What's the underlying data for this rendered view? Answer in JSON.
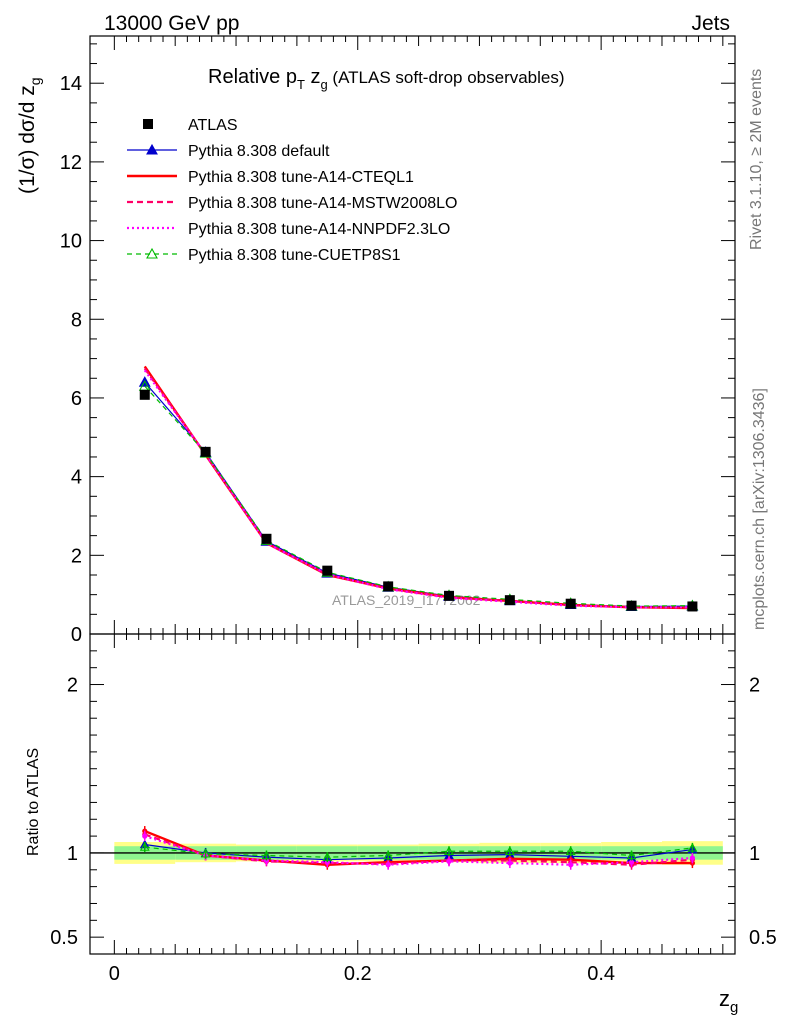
{
  "header": {
    "left": "13000 GeV pp",
    "right": "Jets"
  },
  "side_labels": {
    "version": "Rivet 3.1.10, ≥ 2M events",
    "source": "mcplots.cern.ch [arXiv:1306.3436]"
  },
  "colors": {
    "data": "#000000",
    "default": "#0000cc",
    "cteql1": "#ff0000",
    "mstw": "#ff0066",
    "nnpdf": "#ff00ff",
    "cuetp8s1": "#00bb00",
    "band_inner": "#8ff58f",
    "band_outer": "#ffff88"
  },
  "chart_data": {
    "type": "line",
    "title": "Relative p_T z_g (ATLAS soft-drop observables)",
    "title_parts": {
      "main": "Relative p",
      "sub_T": "T",
      "var": " z",
      "sub_g": "g",
      "note": " (ATLAS soft-drop observables)"
    },
    "analysis_id": "ATLAS_2019_I1772062",
    "xlabel": "z_g",
    "xlabel_parts": {
      "main": "z",
      "sub": "g"
    },
    "ylabel": "(1/σ) dσ/d z_g",
    "ylabel_parts": {
      "main": "(1/σ) dσ/d z",
      "sub": "g"
    },
    "ratio_ylabel": "Ratio to ATLAS",
    "xlim": [
      -0.02,
      0.51
    ],
    "ylim": [
      0,
      15.2
    ],
    "ratio_ylim": [
      0.4,
      2.3
    ],
    "x_ticks": [
      "0",
      "0.2",
      "0.4"
    ],
    "y_ticks": [
      "0",
      "2",
      "4",
      "6",
      "8",
      "10",
      "12",
      "14"
    ],
    "ratio_y_ticks": [
      "0.5",
      "1",
      "2"
    ],
    "legend_position": "top-left",
    "x": [
      0.025,
      0.075,
      0.125,
      0.175,
      0.225,
      0.275,
      0.325,
      0.375,
      0.425,
      0.475
    ],
    "data": {
      "name": "ATLAS",
      "values": [
        6.08,
        4.63,
        2.42,
        1.61,
        1.21,
        0.97,
        0.86,
        0.77,
        0.72,
        0.7
      ],
      "band_inner": [
        0.04,
        0.04,
        0.04,
        0.04,
        0.04,
        0.04,
        0.04,
        0.04,
        0.04,
        0.04
      ],
      "band_outer": [
        0.065,
        0.055,
        0.05,
        0.05,
        0.05,
        0.055,
        0.06,
        0.06,
        0.065,
        0.07
      ]
    },
    "series": [
      {
        "key": "default",
        "name": "Pythia 8.308 default",
        "values": [
          6.4,
          4.62,
          2.36,
          1.55,
          1.19,
          0.96,
          0.85,
          0.75,
          0.7,
          0.71
        ],
        "ratio": [
          1.05,
          1.0,
          0.975,
          0.96,
          0.97,
          0.985,
          0.99,
          0.98,
          0.97,
          1.02
        ]
      },
      {
        "key": "cteql1",
        "name": "Pythia 8.308 tune-A14-CTEQL1",
        "values": [
          6.8,
          4.55,
          2.31,
          1.5,
          1.16,
          0.94,
          0.84,
          0.74,
          0.68,
          0.66
        ],
        "ratio": [
          1.13,
          0.985,
          0.955,
          0.93,
          0.945,
          0.955,
          0.965,
          0.96,
          0.94,
          0.94
        ]
      },
      {
        "key": "mstw",
        "name": "Pythia 8.308 tune-A14-MSTW2008LO",
        "values": [
          6.75,
          4.56,
          2.31,
          1.51,
          1.15,
          0.93,
          0.84,
          0.73,
          0.68,
          0.67
        ],
        "ratio": [
          1.11,
          0.985,
          0.95,
          0.94,
          0.935,
          0.955,
          0.955,
          0.945,
          0.93,
          0.96
        ]
      },
      {
        "key": "nnpdf",
        "name": "Pythia 8.308 tune-A14-NNPDF2.3LO",
        "values": [
          6.7,
          4.57,
          2.31,
          1.52,
          1.14,
          0.92,
          0.82,
          0.72,
          0.68,
          0.68
        ],
        "ratio": [
          1.1,
          0.985,
          0.955,
          0.945,
          0.93,
          0.95,
          0.94,
          0.93,
          0.945,
          0.97
        ]
      },
      {
        "key": "cuetp8s1",
        "name": "Pythia 8.308 tune-CUETP8S1",
        "values": [
          6.3,
          4.6,
          2.38,
          1.57,
          1.2,
          0.98,
          0.88,
          0.78,
          0.71,
          0.72
        ],
        "ratio": [
          1.035,
          0.995,
          0.985,
          0.975,
          0.985,
          1.01,
          1.01,
          1.01,
          0.985,
          1.03
        ]
      }
    ]
  }
}
